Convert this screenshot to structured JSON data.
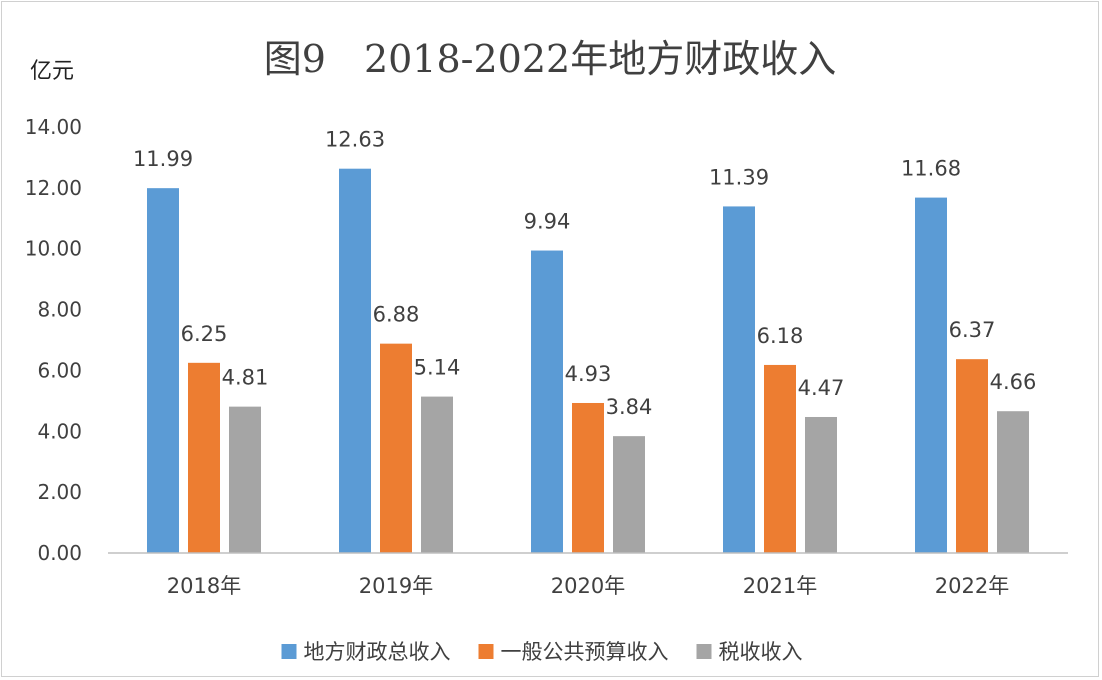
{
  "chart_data": {
    "type": "bar",
    "title": "图9　2018-2022年地方财政收入",
    "ylabel": "亿元",
    "categories": [
      "2018年",
      "2019年",
      "2020年",
      "2021年",
      "2022年"
    ],
    "series": [
      {
        "name": "地方财政总收入",
        "color": "#5B9BD5",
        "values": [
          11.99,
          12.63,
          9.94,
          11.39,
          11.68
        ]
      },
      {
        "name": "一般公共预算收入",
        "color": "#ED7D31",
        "values": [
          6.25,
          6.88,
          4.93,
          6.18,
          6.37
        ]
      },
      {
        "name": "税收收入",
        "color": "#A5A5A5",
        "values": [
          4.81,
          5.14,
          3.84,
          4.47,
          4.66
        ]
      }
    ],
    "ylim": [
      0,
      14
    ],
    "yticks": [
      "0.00",
      "2.00",
      "4.00",
      "6.00",
      "8.00",
      "10.00",
      "12.00",
      "14.00"
    ],
    "grid": false,
    "legend": "bottom"
  }
}
